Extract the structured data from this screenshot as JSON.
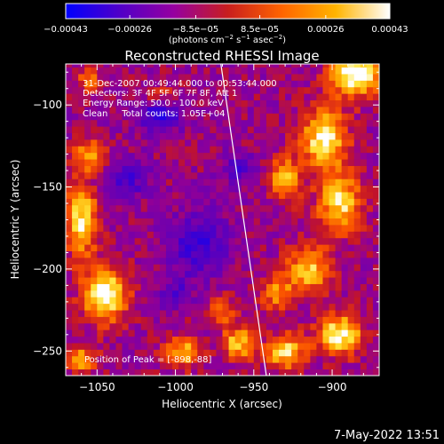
{
  "chart_data": {
    "type": "heatmap",
    "title": "Reconstructed RHESSI Image",
    "xlabel": "Heliocentric X (arcsec)",
    "ylabel": "Heliocentric Y (arcsec)",
    "xlim": [
      -1070,
      -870
    ],
    "ylim": [
      -265,
      -75
    ],
    "x_ticks": [
      -1050,
      -1000,
      -950,
      -900
    ],
    "y_ticks": [
      -100,
      -150,
      -200,
      -250
    ],
    "x_tick_labels": [
      "−1050",
      "−1000",
      "−950",
      "−900"
    ],
    "y_tick_labels": [
      "−100",
      "−150",
      "−200",
      "−250"
    ],
    "colorbar": {
      "range": [
        -0.00043,
        0.00043
      ],
      "ticks": [
        -0.00043,
        -0.00026,
        -8.5e-05,
        8.5e-05,
        0.00026,
        0.00043
      ],
      "tick_labels": [
        "−0.00043",
        "−0.00026",
        "−8.5e−05",
        "8.5e−05",
        "0.00026",
        "0.00043"
      ],
      "unit_parts": [
        "(photons cm",
        "−2",
        " s",
        "−1",
        " asec",
        "−2",
        ")"
      ],
      "colors": [
        "#0000ff",
        "#5000c8",
        "#9600a0",
        "#c81e1e",
        "#ff6400",
        "#ffb400",
        "#ffffff"
      ]
    },
    "annotations": [
      "31-Dec-2007 00:49:44.000 to 00:53:44.000",
      "Detectors: 3F 4F 5F 6F 7F 8F, Att 1",
      "Energy Range: 50.0 - 100.0 keV",
      "Clean     Total counts: 1.05E+04"
    ],
    "peak_label": "Position of Peak = [-898,-88]",
    "limb_line": {
      "x": [
        -971,
        -942
      ],
      "y": [
        -75,
        -265
      ]
    },
    "hotspots": [
      {
        "x": -885,
        "y": -80,
        "sx": 16,
        "sy": 14,
        "a": 1.2
      },
      {
        "x": -905,
        "y": -120,
        "sx": 14,
        "sy": 18,
        "a": 1.0
      },
      {
        "x": -895,
        "y": -160,
        "sx": 14,
        "sy": 18,
        "a": 0.85
      },
      {
        "x": -930,
        "y": -145,
        "sx": 10,
        "sy": 14,
        "a": 0.7
      },
      {
        "x": -915,
        "y": -200,
        "sx": 14,
        "sy": 14,
        "a": 0.8
      },
      {
        "x": -895,
        "y": -240,
        "sx": 14,
        "sy": 12,
        "a": 1.0
      },
      {
        "x": -930,
        "y": -250,
        "sx": 12,
        "sy": 10,
        "a": 0.9
      },
      {
        "x": -960,
        "y": -245,
        "sx": 10,
        "sy": 10,
        "a": 0.8
      },
      {
        "x": -935,
        "y": -215,
        "sx": 10,
        "sy": 10,
        "a": 0.6
      },
      {
        "x": -1060,
        "y": -170,
        "sx": 10,
        "sy": 22,
        "a": 0.9
      },
      {
        "x": -1045,
        "y": -215,
        "sx": 14,
        "sy": 16,
        "a": 1.1
      },
      {
        "x": -1060,
        "y": -255,
        "sx": 10,
        "sy": 10,
        "a": 0.6
      },
      {
        "x": -1055,
        "y": -130,
        "sx": 10,
        "sy": 10,
        "a": 0.6
      },
      {
        "x": -995,
        "y": -250,
        "sx": 12,
        "sy": 10,
        "a": 0.7
      },
      {
        "x": -1010,
        "y": -95,
        "sx": 10,
        "sy": 8,
        "a": 0.45
      },
      {
        "x": -1055,
        "y": -85,
        "sx": 8,
        "sy": 8,
        "a": 0.5
      },
      {
        "x": -970,
        "y": -225,
        "sx": 8,
        "sy": 8,
        "a": 0.5
      }
    ],
    "coldspots": [
      {
        "x": -1010,
        "y": -105,
        "sx": 14,
        "sy": 10,
        "a": 0.7
      },
      {
        "x": -985,
        "y": -185,
        "sx": 18,
        "sy": 18,
        "a": 0.55
      },
      {
        "x": -1030,
        "y": -145,
        "sx": 12,
        "sy": 12,
        "a": 0.45
      },
      {
        "x": -960,
        "y": -140,
        "sx": 10,
        "sy": 10,
        "a": 0.4
      },
      {
        "x": -1000,
        "y": -215,
        "sx": 10,
        "sy": 10,
        "a": 0.4
      }
    ]
  },
  "footer": {
    "timestamp": "7-May-2022 13:51"
  }
}
